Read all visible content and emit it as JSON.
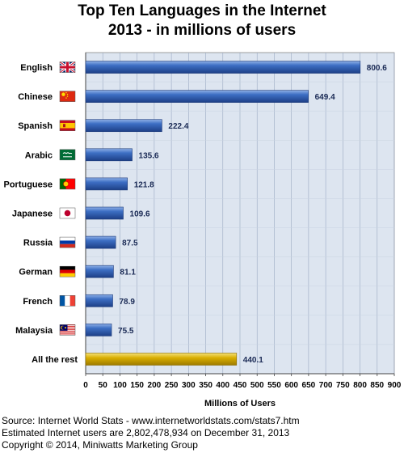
{
  "chart_data": {
    "type": "bar",
    "orientation": "horizontal",
    "title": "Top Ten Languages in the Internet",
    "subtitle": "2013 - in millions of users",
    "xlabel": "Millions of Users",
    "ylabel": "",
    "xlim": [
      0,
      900
    ],
    "xticks": [
      0,
      50,
      100,
      150,
      200,
      250,
      300,
      350,
      400,
      450,
      500,
      550,
      600,
      650,
      700,
      750,
      800,
      850,
      900
    ],
    "grid": true,
    "categories": [
      "English",
      "Chinese",
      "Spanish",
      "Arabic",
      "Portuguese",
      "Japanese",
      "Russia",
      "German",
      "French",
      "Malaysia",
      "All the rest"
    ],
    "values": [
      800.6,
      649.4,
      222.4,
      135.6,
      121.8,
      109.6,
      87.5,
      81.1,
      78.9,
      75.5,
      440.1
    ],
    "value_labels": [
      "800.6",
      "649.4",
      "222.4",
      "135.6",
      "121.8",
      "109.6",
      "87.5",
      "81.1",
      "78.9",
      "75.5",
      "440.1"
    ],
    "flag_icons": [
      "uk-flag-icon",
      "china-flag-icon",
      "spain-flag-icon",
      "saudi-arabia-flag-icon",
      "portugal-flag-icon",
      "japan-flag-icon",
      "russia-flag-icon",
      "germany-flag-icon",
      "france-flag-icon",
      "malaysia-flag-icon",
      ""
    ],
    "colors": {
      "bar": "#2e5fb0",
      "bar_highlight": "#d4a800",
      "plot_background": "#dde5f0",
      "grid": "#9aa9c2"
    }
  },
  "footer": {
    "line1": "Source: Internet World Stats - www.internetworldstats.com/stats7.htm",
    "line2": "Estimated Internet users are 2,802,478,934 on December 31, 2013",
    "line3": "Copyright © 2014, Miniwatts Marketing Group"
  }
}
